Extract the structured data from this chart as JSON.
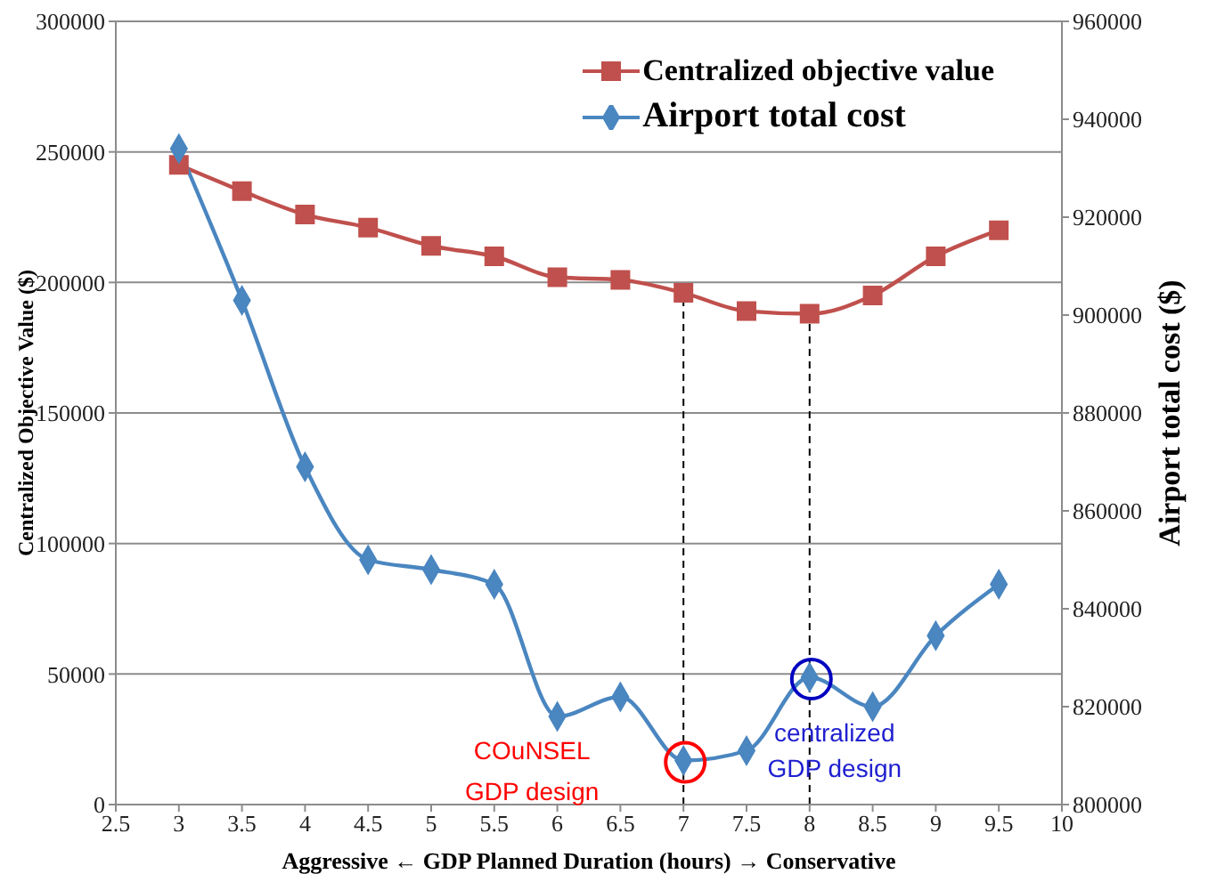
{
  "chart_data": {
    "type": "line",
    "xlabel": "Aggressive ← GDP Planned Duration (hours) → Conservative",
    "ylabel": "Centralized Objective Value ($)",
    "y2label": "Airport total cost ($)",
    "x": [
      3,
      3.5,
      4,
      4.5,
      5,
      5.5,
      6,
      6.5,
      7,
      7.5,
      8,
      8.5,
      9,
      9.5
    ],
    "series": [
      {
        "name": "Centralized objective value",
        "color": "#c0504d",
        "marker": "square",
        "axis": "y",
        "values": [
          245000,
          235000,
          226000,
          221000,
          214000,
          210000,
          202000,
          201000,
          196000,
          189000,
          188000,
          195000,
          210000,
          220000
        ]
      },
      {
        "name": "Airport total cost",
        "color": "#4a86c0",
        "marker": "diamond",
        "axis": "y2",
        "values": [
          934000,
          903000,
          869000,
          850000,
          848000,
          845000,
          818000,
          822000,
          809000,
          811000,
          826000,
          820000,
          834500,
          845000
        ]
      }
    ],
    "xlim": [
      2.5,
      10
    ],
    "xticks": [
      2.5,
      3,
      3.5,
      4,
      4.5,
      5,
      5.5,
      6,
      6.5,
      7,
      7.5,
      8,
      8.5,
      9,
      9.5,
      10
    ],
    "ylim": [
      0,
      300000
    ],
    "yticks": [
      0,
      50000,
      100000,
      150000,
      200000,
      250000,
      300000
    ],
    "y2lim": [
      800000,
      960000
    ],
    "y2ticks": [
      800000,
      820000,
      840000,
      860000,
      880000,
      900000,
      920000,
      940000,
      960000
    ],
    "grid": "y",
    "legend": "top right",
    "ref_lines": [
      {
        "axis": "x",
        "value": 7,
        "color": "#000000",
        "line_style": "dashed"
      },
      {
        "axis": "x",
        "value": 8,
        "color": "#000000",
        "line_style": "dashed"
      }
    ],
    "annotations": [
      "COuNSEL\nGDP design",
      "centralized\nGDP design"
    ]
  }
}
